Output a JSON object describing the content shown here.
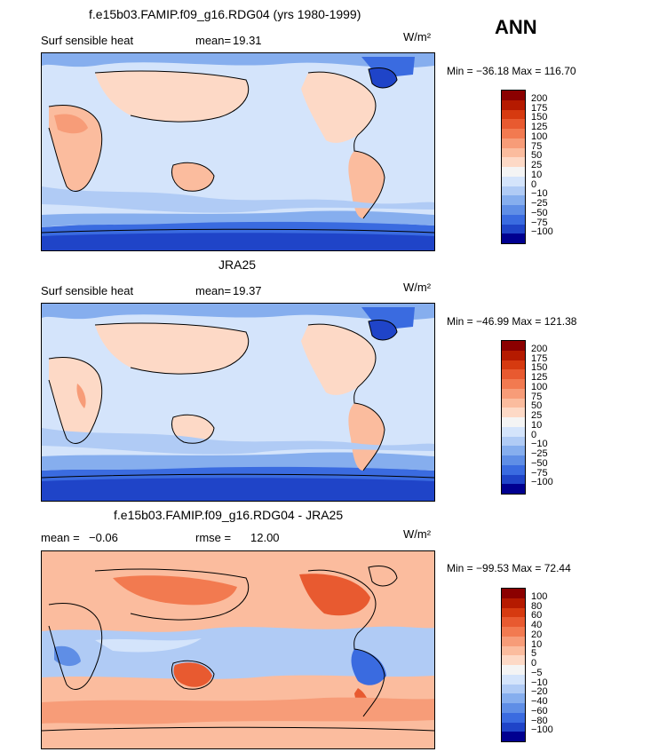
{
  "header": {
    "season": "ANN"
  },
  "panels": [
    {
      "title": "f.e15b03.FAMIP.f09_g16.RDG04 (yrs 1980-1999)",
      "variable": "Surf sensible heat",
      "stat1_label": "mean=",
      "stat1_value": "19.31",
      "stat2_label": "",
      "stat2_value": "",
      "units": "W/m²",
      "minmax": "Min = −36.18 Max = 116.70",
      "colorbar": {
        "labels": [
          "200",
          "175",
          "150",
          "125",
          "100",
          "75",
          "50",
          "25",
          "10",
          "0",
          "−10",
          "−25",
          "−50",
          "−75",
          "−100"
        ],
        "colors": [
          "#8b0000",
          "#b51a00",
          "#d63a10",
          "#e85a30",
          "#f27a50",
          "#f79c78",
          "#fbbc9e",
          "#fdd9c6",
          "#f4f4f4",
          "#d4e4fb",
          "#b0cbf5",
          "#86aeee",
          "#5f8ee6",
          "#3a6be0",
          "#1f44c8",
          "#000090"
        ]
      }
    },
    {
      "title": "JRA25",
      "variable": "Surf sensible heat",
      "stat1_label": "mean=",
      "stat1_value": "19.37",
      "stat2_label": "",
      "stat2_value": "",
      "units": "W/m²",
      "minmax": "Min = −46.99 Max = 121.38",
      "colorbar": {
        "labels": [
          "200",
          "175",
          "150",
          "125",
          "100",
          "75",
          "50",
          "25",
          "10",
          "0",
          "−10",
          "−25",
          "−50",
          "−75",
          "−100"
        ],
        "colors": [
          "#8b0000",
          "#b51a00",
          "#d63a10",
          "#e85a30",
          "#f27a50",
          "#f79c78",
          "#fbbc9e",
          "#fdd9c6",
          "#f4f4f4",
          "#d4e4fb",
          "#b0cbf5",
          "#86aeee",
          "#5f8ee6",
          "#3a6be0",
          "#1f44c8",
          "#000090"
        ]
      }
    },
    {
      "title": "f.e15b03.FAMIP.f09_g16.RDG04 - JRA25",
      "variable": "",
      "stat1_label": "mean =",
      "stat1_value": "−0.06",
      "stat2_label": "rmse =",
      "stat2_value": "12.00",
      "units": "W/m²",
      "minmax": "Min = −99.53 Max = 72.44",
      "colorbar": {
        "labels": [
          "100",
          "80",
          "60",
          "40",
          "20",
          "10",
          "5",
          "0",
          "−5",
          "−10",
          "−20",
          "−40",
          "−60",
          "−80",
          "−100"
        ],
        "colors": [
          "#8b0000",
          "#b51a00",
          "#d63a10",
          "#e85a30",
          "#f27a50",
          "#f79c78",
          "#fbbc9e",
          "#fdd9c6",
          "#f4f4f4",
          "#d4e4fb",
          "#b0cbf5",
          "#86aeee",
          "#5f8ee6",
          "#3a6be0",
          "#1f44c8",
          "#000090"
        ]
      }
    }
  ]
}
